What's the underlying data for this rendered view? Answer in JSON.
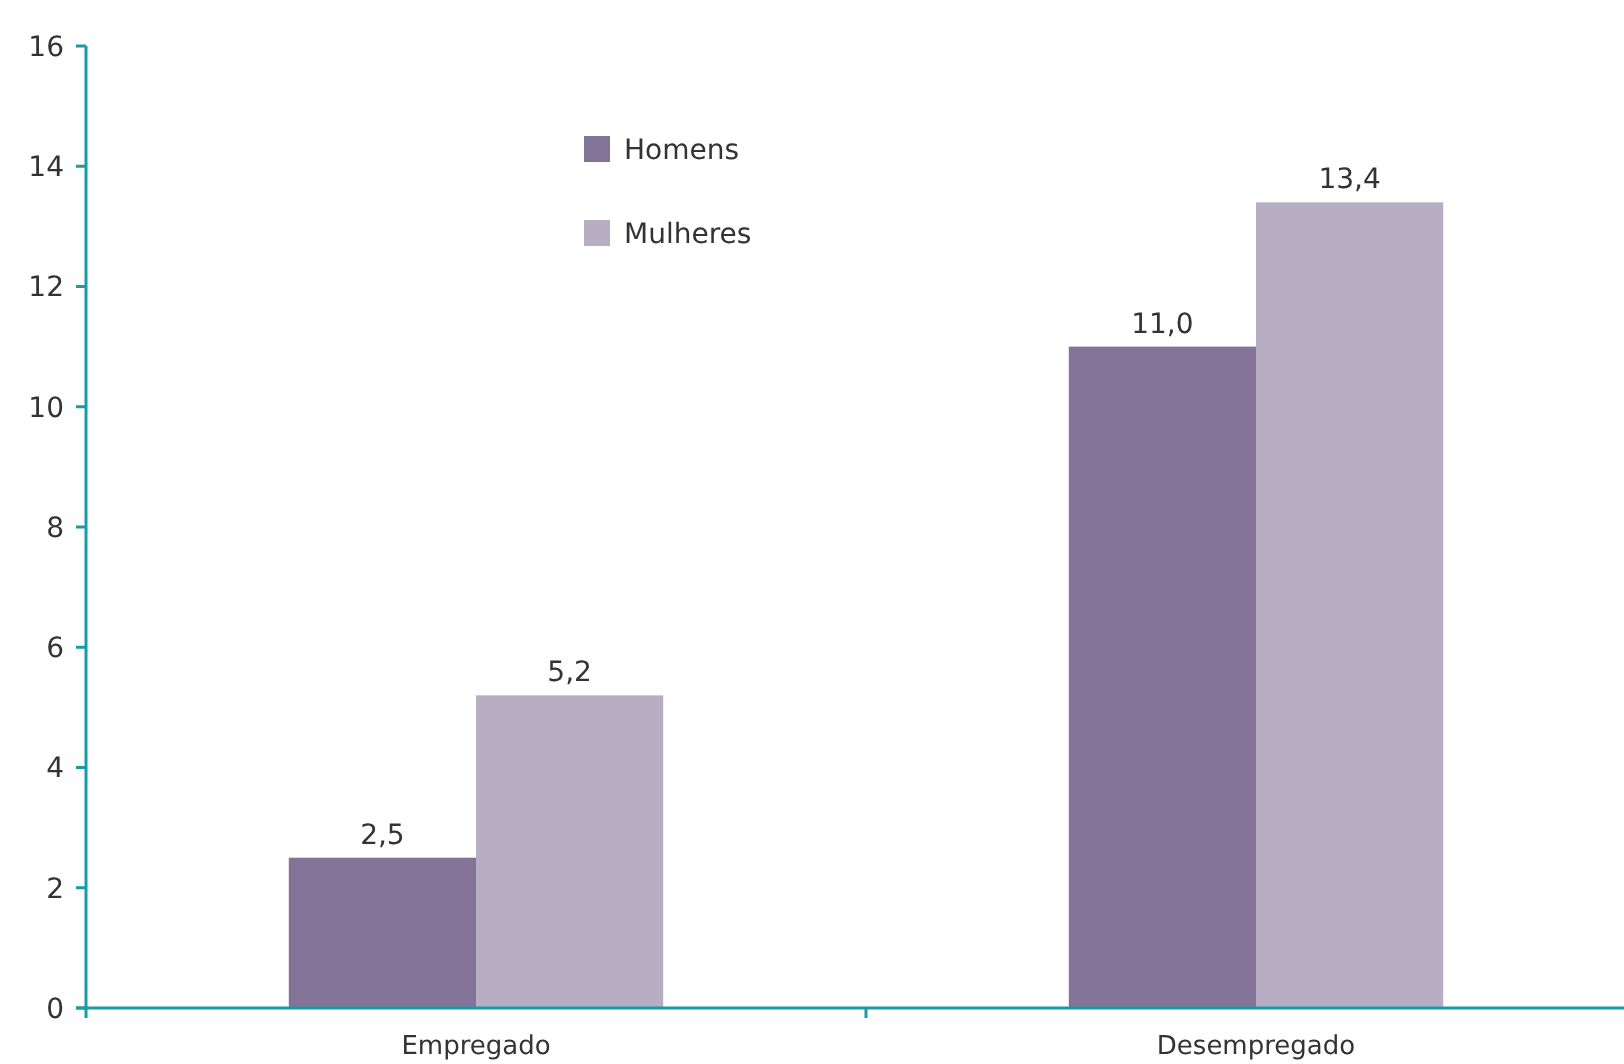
{
  "chart_data": {
    "type": "bar",
    "categories": [
      "Empregado",
      "Desempregado"
    ],
    "series": [
      {
        "name": "Homens",
        "color": "#837399",
        "values": [
          2.5,
          11.0
        ],
        "value_labels": [
          "2,5",
          "11,0"
        ]
      },
      {
        "name": "Mulheres",
        "color": "#b8aec3",
        "values": [
          5.2,
          13.4
        ],
        "value_labels": [
          "5,2",
          "13,4"
        ]
      }
    ],
    "ylim": [
      0,
      16
    ],
    "yticks": [
      0,
      2,
      4,
      6,
      8,
      10,
      12,
      14,
      16
    ],
    "legend": "top left"
  }
}
